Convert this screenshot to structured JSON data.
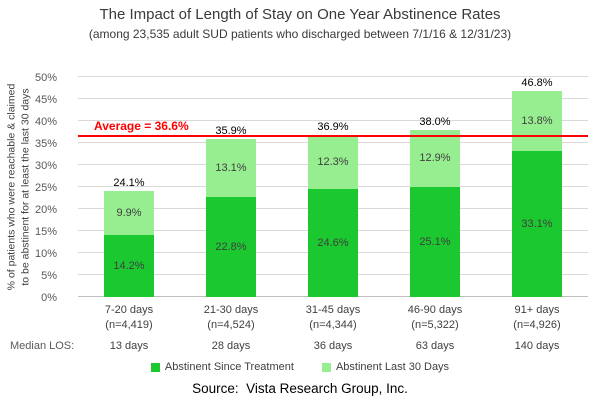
{
  "chart_data": {
    "type": "bar",
    "stacked": true,
    "title": "The Impact of Length of Stay on One Year Abstinence Rates",
    "subtitle": "(among 23,535 adult SUD patients who discharged between 7/1/16 & 12/31/23)",
    "ylabel_line1": "% of patients who were reachable & claimed",
    "ylabel_line2": "to be abstinent for at least the last 30 days",
    "ylim": [
      0,
      50
    ],
    "yticks": [
      "0%",
      "5%",
      "10%",
      "15%",
      "20%",
      "25%",
      "30%",
      "35%",
      "40%",
      "45%",
      "50%"
    ],
    "grid": true,
    "legend_position": "bottom",
    "categories": [
      {
        "range": "7-20 days",
        "n": "(n=4,419)",
        "median_los": "13 days"
      },
      {
        "range": "21-30 days",
        "n": "(n=4,524)",
        "median_los": "28 days"
      },
      {
        "range": "31-45 days",
        "n": "(n=4,344)",
        "median_los": "36 days"
      },
      {
        "range": "46-90 days",
        "n": "(n=5,322)",
        "median_los": "63 days"
      },
      {
        "range": "91+ days",
        "n": "(n=4,926)",
        "median_los": "140 days"
      }
    ],
    "series": [
      {
        "name": "Abstinent Since Treatment",
        "color": "#1CC830",
        "values": [
          14.2,
          22.8,
          24.6,
          25.1,
          33.1
        ],
        "labels": [
          "14.2%",
          "22.8%",
          "24.6%",
          "25.1%",
          "33.1%"
        ]
      },
      {
        "name": "Abstinent Last 30 Days",
        "color": "#97EE90",
        "values": [
          9.9,
          13.1,
          12.3,
          12.9,
          13.8
        ],
        "labels": [
          "9.9%",
          "13.1%",
          "12.3%",
          "12.9%",
          "13.8%"
        ]
      }
    ],
    "totals": [
      24.1,
      35.9,
      36.9,
      38.0,
      46.8
    ],
    "total_labels": [
      "24.1%",
      "35.9%",
      "36.9%",
      "38.0%",
      "46.8%"
    ],
    "average_line": {
      "value": 36.6,
      "label": "Average = 36.6%",
      "color": "#FF0000"
    },
    "median_los_label": "Median LOS:"
  },
  "source": "Source:  Vista Research Group, Inc."
}
